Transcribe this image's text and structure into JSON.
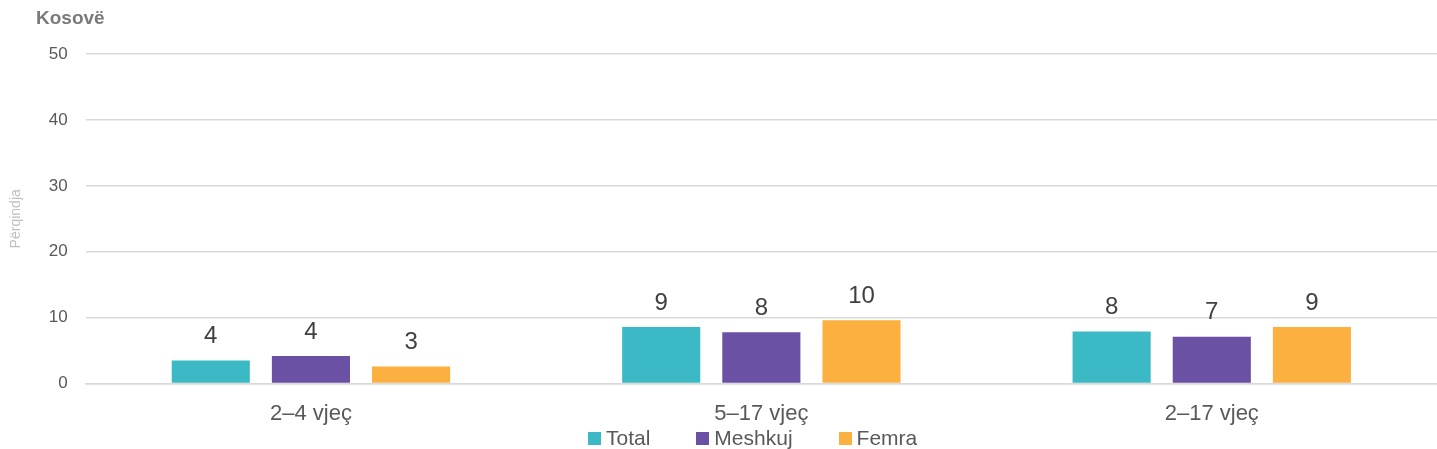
{
  "chart_data": {
    "type": "bar",
    "title": "Kosovë",
    "ylabel": "Përqindja",
    "categories": [
      "2–4 vjeç",
      "5–17 vjeç",
      "2–17 vjeç"
    ],
    "series": [
      {
        "name": "Total",
        "color": "#3bbac6",
        "values": [
          3.5,
          8.6,
          7.9
        ],
        "value_labels": [
          "4",
          "9",
          "8"
        ]
      },
      {
        "name": "Meshkuj",
        "color": "#6a51a3",
        "values": [
          4.2,
          7.8,
          7.1
        ],
        "value_labels": [
          "4",
          "8",
          "7"
        ]
      },
      {
        "name": "Femra",
        "color": "#fbb040",
        "values": [
          2.6,
          9.6,
          8.6
        ],
        "value_labels": [
          "3",
          "10",
          "9"
        ]
      }
    ],
    "ylim": [
      0,
      50
    ],
    "yticks": [
      0,
      10,
      20,
      30,
      40,
      50
    ],
    "grid": "y",
    "legend": "bottom"
  }
}
